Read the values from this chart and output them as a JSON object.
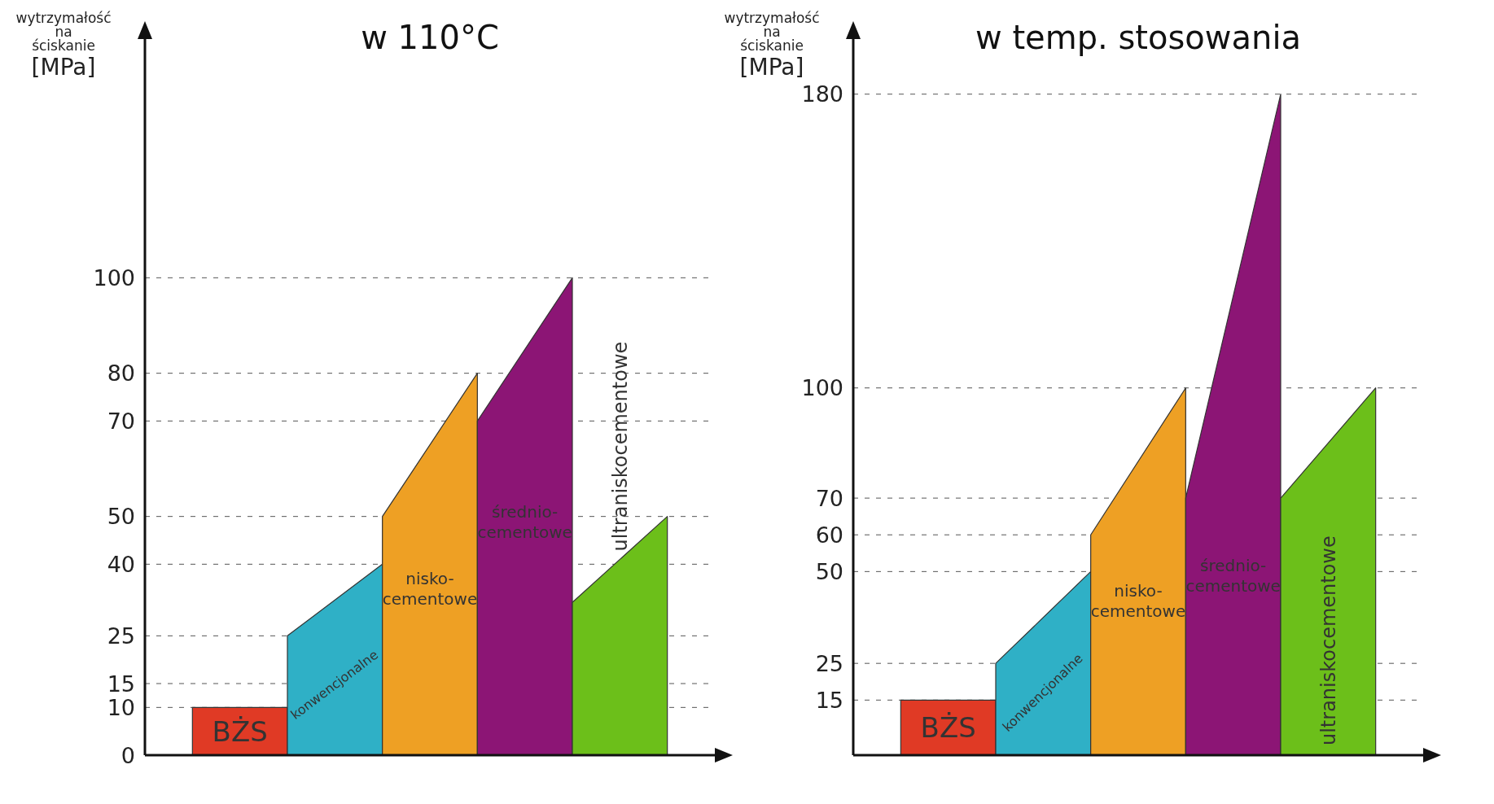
{
  "chart_data": [
    {
      "type": "area",
      "title": "w 110°C",
      "ylabel": "wytrzymałość\nna\nściskanie\n[MPa]",
      "categories": [
        null,
        null,
        null,
        null,
        null,
        null
      ],
      "ylim": [
        0,
        150
      ],
      "yticks": [
        0,
        10,
        15,
        25,
        40,
        50,
        70,
        80,
        100
      ],
      "grid": "y",
      "legend": false,
      "tick_labels": "y",
      "series": [
        {
          "name": "BŻS",
          "color": "#e03a25",
          "values": [
            10,
            10,
            null,
            null,
            null,
            null
          ]
        },
        {
          "name": "konwencjonalne",
          "color": "#2fb0c6",
          "values": [
            null,
            25,
            40,
            null,
            null,
            null
          ]
        },
        {
          "name": "nisko-\ncementowe",
          "color": "#eea024",
          "values": [
            null,
            null,
            50,
            80,
            null,
            null
          ]
        },
        {
          "name": "średnio-\ncementowe",
          "color": "#8c1575",
          "values": [
            null,
            null,
            null,
            70,
            100,
            null
          ]
        },
        {
          "name": "ultraniskocementowe",
          "color": "#6cbf1a",
          "values": [
            null,
            null,
            null,
            null,
            32,
            50
          ]
        }
      ]
    },
    {
      "type": "area",
      "title": "w temp. stosowania",
      "ylabel": "wytrzymałość\nna\nściskanie\n[MPa]",
      "categories": [
        null,
        null,
        null,
        null,
        null,
        null
      ],
      "ylim": [
        0,
        195
      ],
      "yticks": [
        15,
        25,
        50,
        60,
        70,
        100,
        180
      ],
      "grid": "y",
      "legend": false,
      "tick_labels": "y",
      "series": [
        {
          "name": "BŻS",
          "color": "#e03a25",
          "values": [
            15,
            15,
            null,
            null,
            null,
            null
          ]
        },
        {
          "name": "konwencjonalne",
          "color": "#2fb0c6",
          "values": [
            null,
            25,
            50,
            null,
            null,
            null
          ]
        },
        {
          "name": "nisko-\ncementowe",
          "color": "#eea024",
          "values": [
            null,
            null,
            60,
            100,
            null,
            null
          ]
        },
        {
          "name": "średnio-\ncementowe",
          "color": "#8c1575",
          "values": [
            null,
            null,
            null,
            70,
            180,
            null
          ]
        },
        {
          "name": "ultraniskocementowe",
          "color": "#6cbf1a",
          "values": [
            null,
            null,
            null,
            null,
            70,
            100
          ]
        }
      ]
    }
  ]
}
